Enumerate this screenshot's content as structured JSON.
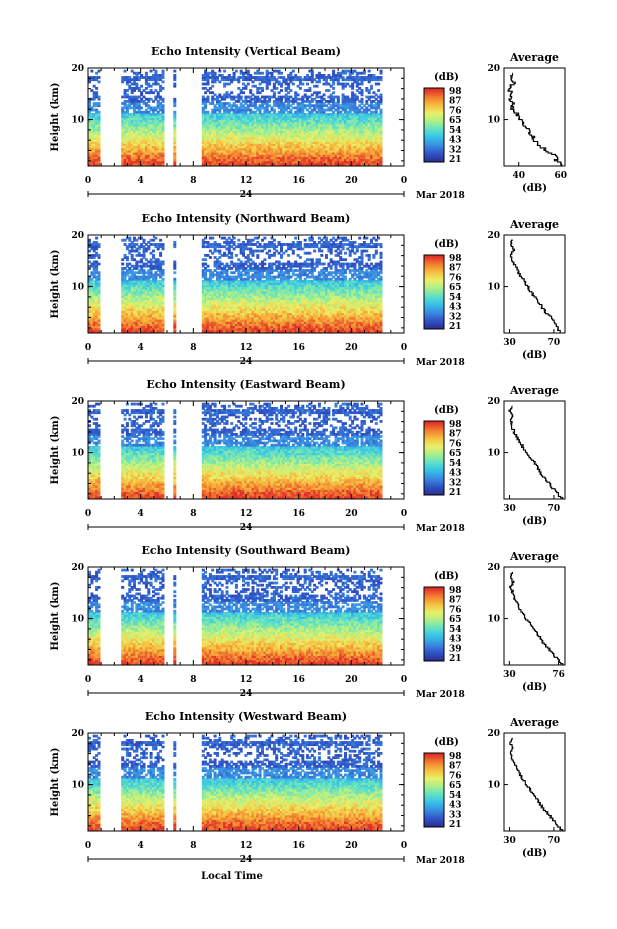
{
  "colors": {
    "colormap": [
      "#2b2f8f",
      "#2f54c8",
      "#3c8be0",
      "#35c0e8",
      "#5fe0c8",
      "#a8ef8a",
      "#e8f06a",
      "#f7c040",
      "#f28030",
      "#e0302a"
    ],
    "axis": "#000000"
  },
  "shared": {
    "x_ticks": [
      "0",
      "4",
      "8",
      "12",
      "16",
      "20",
      "0"
    ],
    "date_label": "24",
    "month_label": "Mar 2018",
    "y_label": "Height (km)",
    "cb_unit": "(dB)",
    "avg_title": "Average",
    "avg_xlabel": "(dB)",
    "x_axis_label": "Local Time"
  },
  "chart_data": [
    {
      "type": "heatmap",
      "title": "Echo Intensity (Vertical Beam)",
      "ylabel": "Height (km)",
      "y_ticks": [
        "20",
        "10"
      ],
      "ylim": [
        1,
        20
      ],
      "xlim": [
        0,
        24
      ],
      "data_gaps_hours": [
        [
          1.0,
          2.4
        ],
        [
          5.8,
          6.3
        ],
        [
          6.7,
          8.5
        ]
      ],
      "colorbar": {
        "unit": "(dB)",
        "ticks": [
          "98",
          "87",
          "76",
          "65",
          "54",
          "43",
          "32",
          "21"
        ]
      },
      "average": {
        "title": "Average",
        "xlabel": "(dB)",
        "x_ticks": [
          "40",
          "60"
        ],
        "xlim": [
          33,
          62
        ],
        "height_km": [
          1,
          2,
          3,
          4,
          5,
          6,
          7,
          8,
          9,
          10,
          11,
          12,
          13,
          14,
          15,
          16,
          17,
          18,
          19
        ],
        "value_db": [
          60,
          58,
          57,
          53,
          49,
          47,
          46,
          44,
          42,
          41,
          39,
          37,
          37,
          36,
          37,
          35,
          38,
          36,
          37
        ]
      }
    },
    {
      "type": "heatmap",
      "title": "Echo Intensity (Northward Beam)",
      "ylabel": "Height (km)",
      "y_ticks": [
        "20",
        "10"
      ],
      "ylim": [
        1,
        20
      ],
      "xlim": [
        0,
        24
      ],
      "data_gaps_hours": [
        [
          1.0,
          2.4
        ],
        [
          5.8,
          6.3
        ],
        [
          6.7,
          8.5
        ]
      ],
      "colorbar": {
        "unit": "(dB)",
        "ticks": [
          "98",
          "87",
          "76",
          "65",
          "54",
          "43",
          "32",
          "21"
        ]
      },
      "average": {
        "title": "Average",
        "xlabel": "(dB)",
        "x_ticks": [
          "30",
          "70"
        ],
        "xlim": [
          25,
          80
        ],
        "height_km": [
          1,
          2,
          3,
          4,
          5,
          6,
          7,
          8,
          9,
          10,
          11,
          12,
          13,
          14,
          15,
          16,
          17,
          18,
          19
        ],
        "value_db": [
          76,
          73,
          70,
          67,
          62,
          59,
          56,
          52,
          49,
          46,
          43,
          40,
          37,
          35,
          32,
          31,
          34,
          31,
          33
        ]
      }
    },
    {
      "type": "heatmap",
      "title": "Echo Intensity (Eastward Beam)",
      "ylabel": "Height (km)",
      "y_ticks": [
        "20",
        "10"
      ],
      "ylim": [
        1,
        20
      ],
      "xlim": [
        0,
        24
      ],
      "data_gaps_hours": [
        [
          1.0,
          2.4
        ],
        [
          5.8,
          6.3
        ],
        [
          6.7,
          8.5
        ]
      ],
      "colorbar": {
        "unit": "(dB)",
        "ticks": [
          "98",
          "87",
          "76",
          "65",
          "54",
          "43",
          "32",
          "21"
        ]
      },
      "average": {
        "title": "Average",
        "xlabel": "(dB)",
        "x_ticks": [
          "30",
          "70"
        ],
        "xlim": [
          25,
          80
        ],
        "height_km": [
          1,
          2,
          3,
          4,
          5,
          6,
          7,
          8,
          9,
          10,
          11,
          12,
          13,
          14,
          15,
          16,
          17,
          18,
          19
        ],
        "value_db": [
          77,
          73,
          69,
          66,
          61,
          58,
          55,
          52,
          48,
          45,
          42,
          39,
          36,
          34,
          32,
          31,
          33,
          30,
          32
        ]
      }
    },
    {
      "type": "heatmap",
      "title": "Echo Intensity (Southward Beam)",
      "ylabel": "Height (km)",
      "y_ticks": [
        "20",
        "10"
      ],
      "ylim": [
        1,
        20
      ],
      "xlim": [
        0,
        24
      ],
      "data_gaps_hours": [
        [
          1.0,
          2.4
        ],
        [
          5.8,
          6.3
        ],
        [
          6.7,
          8.5
        ]
      ],
      "colorbar": {
        "unit": "(dB)",
        "ticks": [
          "98",
          "87",
          "76",
          "65",
          "54",
          "43",
          "39",
          "21"
        ]
      },
      "average": {
        "title": "Average",
        "xlabel": "(dB)",
        "x_ticks": [
          "30",
          "76"
        ],
        "xlim": [
          25,
          82
        ],
        "height_km": [
          1,
          2,
          3,
          4,
          5,
          6,
          7,
          8,
          9,
          10,
          11,
          12,
          13,
          14,
          15,
          16,
          17,
          18,
          19
        ],
        "value_db": [
          79,
          75,
          71,
          67,
          62,
          59,
          56,
          52,
          49,
          45,
          42,
          39,
          37,
          34,
          33,
          31,
          34,
          31,
          33
        ]
      }
    },
    {
      "type": "heatmap",
      "title": "Echo Intensity (Westward Beam)",
      "ylabel": "Height (km)",
      "y_ticks": [
        "20",
        "10"
      ],
      "ylim": [
        1,
        20
      ],
      "xlim": [
        0,
        24
      ],
      "data_gaps_hours": [
        [
          1.0,
          2.4
        ],
        [
          5.8,
          6.3
        ],
        [
          6.7,
          8.5
        ]
      ],
      "colorbar": {
        "unit": "(dB)",
        "ticks": [
          "98",
          "87",
          "76",
          "65",
          "54",
          "43",
          "33",
          "21"
        ]
      },
      "average": {
        "title": "Average",
        "xlabel": "(dB)",
        "x_ticks": [
          "30",
          "70"
        ],
        "xlim": [
          25,
          80
        ],
        "height_km": [
          1,
          2,
          3,
          4,
          5,
          6,
          7,
          8,
          9,
          10,
          11,
          12,
          13,
          14,
          15,
          16,
          17,
          18,
          19
        ],
        "value_db": [
          77,
          73,
          69,
          66,
          61,
          58,
          55,
          51,
          48,
          45,
          42,
          39,
          36,
          34,
          32,
          31,
          33,
          30,
          32
        ]
      }
    }
  ]
}
